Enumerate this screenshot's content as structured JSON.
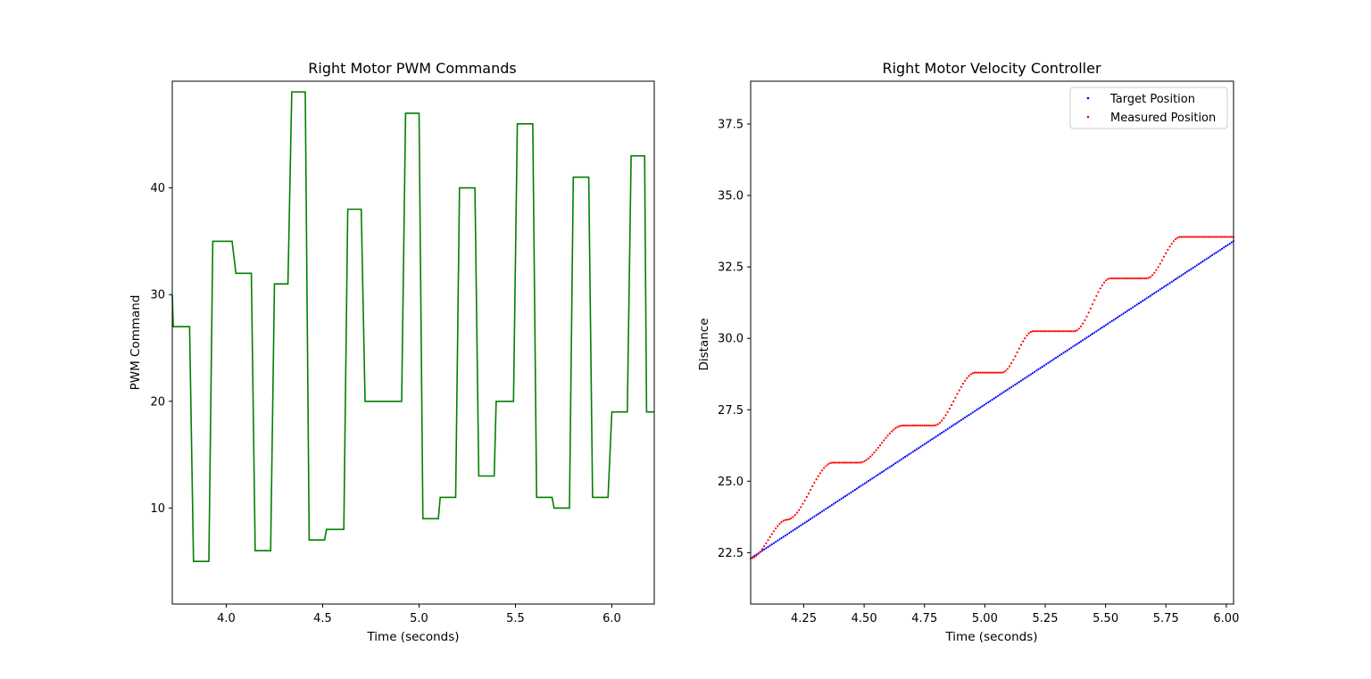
{
  "chart_data": [
    {
      "type": "line",
      "title": "Right Motor PWM Commands",
      "xlabel": "Time (seconds)",
      "ylabel": "PWM Command",
      "xlim": [
        3.72,
        6.22
      ],
      "ylim": [
        1,
        50
      ],
      "xticks": [
        4.0,
        4.5,
        5.0,
        5.5,
        6.0
      ],
      "xtick_labels": [
        "4.0",
        "4.5",
        "5.0",
        "5.5",
        "6.0"
      ],
      "yticks": [
        10,
        20,
        30,
        40
      ],
      "ytick_labels": [
        "10",
        "20",
        "30",
        "40"
      ],
      "grid": false,
      "series": [
        {
          "color": "#008000",
          "style": "step",
          "points": [
            [
              3.72,
              30
            ],
            [
              3.725,
              27
            ],
            [
              3.81,
              27
            ],
            [
              3.83,
              5
            ],
            [
              3.91,
              5
            ],
            [
              3.93,
              35
            ],
            [
              4.03,
              35
            ],
            [
              4.05,
              32
            ],
            [
              4.13,
              32
            ],
            [
              4.15,
              6
            ],
            [
              4.23,
              6
            ],
            [
              4.25,
              31
            ],
            [
              4.32,
              31
            ],
            [
              4.34,
              49
            ],
            [
              4.41,
              49
            ],
            [
              4.43,
              7
            ],
            [
              4.51,
              7
            ],
            [
              4.52,
              8
            ],
            [
              4.61,
              8
            ],
            [
              4.63,
              38
            ],
            [
              4.7,
              38
            ],
            [
              4.72,
              20
            ],
            [
              4.91,
              20
            ],
            [
              4.93,
              47
            ],
            [
              5.0,
              47
            ],
            [
              5.02,
              9
            ],
            [
              5.1,
              9
            ],
            [
              5.11,
              11
            ],
            [
              5.19,
              11
            ],
            [
              5.21,
              40
            ],
            [
              5.29,
              40
            ],
            [
              5.31,
              13
            ],
            [
              5.39,
              13
            ],
            [
              5.4,
              20
            ],
            [
              5.49,
              20
            ],
            [
              5.51,
              46
            ],
            [
              5.59,
              46
            ],
            [
              5.61,
              11
            ],
            [
              5.69,
              11
            ],
            [
              5.7,
              10
            ],
            [
              5.78,
              10
            ],
            [
              5.8,
              41
            ],
            [
              5.88,
              41
            ],
            [
              5.9,
              11
            ],
            [
              5.98,
              11
            ],
            [
              6.0,
              19
            ],
            [
              6.08,
              19
            ],
            [
              6.1,
              43
            ],
            [
              6.17,
              43
            ],
            [
              6.18,
              19
            ],
            [
              6.22,
              19
            ]
          ]
        }
      ]
    },
    {
      "type": "scatter",
      "title": "Right Motor Velocity Controller",
      "xlabel": "Time (seconds)",
      "ylabel": "Distance",
      "xlim": [
        4.03,
        6.03
      ],
      "ylim": [
        20.7,
        39.0
      ],
      "xticks": [
        4.25,
        4.5,
        4.75,
        5.0,
        5.25,
        5.5,
        5.75,
        6.0
      ],
      "xtick_labels": [
        "4.25",
        "4.50",
        "4.75",
        "5.00",
        "5.25",
        "5.50",
        "5.75",
        "6.00"
      ],
      "yticks": [
        22.5,
        25.0,
        27.5,
        30.0,
        32.5,
        35.0,
        37.5
      ],
      "ytick_labels": [
        "22.5",
        "25.0",
        "27.5",
        "30.0",
        "32.5",
        "35.0",
        "37.5"
      ],
      "grid": false,
      "legend_position": "top-right",
      "sample_step": 0.008,
      "series": [
        {
          "name": "Target Position",
          "color": "#0000ff",
          "kind": "linear",
          "x_range": [
            4.03,
            6.03
          ],
          "y_range": [
            22.3,
            33.4
          ]
        },
        {
          "name": "Measured Position",
          "color": "#ff0000",
          "kind": "staircase",
          "x_start": 4.03,
          "y_start": 22.3,
          "steps": [
            [
              4.03,
              4.18,
              23.65
            ],
            [
              4.37,
              4.48,
              25.65
            ],
            [
              4.66,
              4.79,
              26.95
            ],
            [
              4.96,
              5.07,
              28.8
            ],
            [
              5.2,
              5.37,
              30.25
            ],
            [
              5.52,
              5.67,
              32.1
            ],
            [
              5.81,
              5.95,
              33.55
            ]
          ],
          "x_end": 6.03
        }
      ]
    }
  ]
}
